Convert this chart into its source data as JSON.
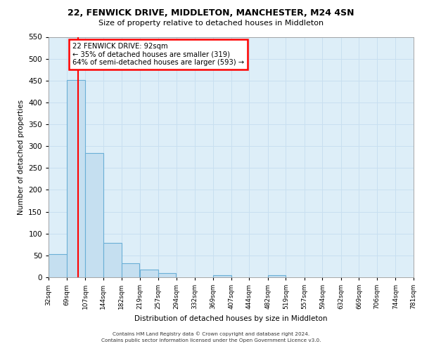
{
  "title_line1": "22, FENWICK DRIVE, MIDDLETON, MANCHESTER, M24 4SN",
  "title_line2": "Size of property relative to detached houses in Middleton",
  "xlabel": "Distribution of detached houses by size in Middleton",
  "ylabel": "Number of detached properties",
  "bar_left_edges": [
    32,
    69,
    107,
    144,
    182,
    219,
    257,
    294,
    332,
    369,
    407,
    444,
    482,
    519,
    557,
    594,
    632,
    669,
    706,
    744
  ],
  "bar_widths": [
    37,
    38,
    37,
    38,
    37,
    38,
    37,
    38,
    37,
    38,
    37,
    38,
    37,
    38,
    37,
    38,
    37,
    38,
    37,
    37
  ],
  "bar_heights": [
    53,
    452,
    284,
    79,
    32,
    17,
    9,
    0,
    0,
    5,
    0,
    0,
    5,
    0,
    0,
    0,
    0,
    0,
    0,
    0
  ],
  "bar_color": "#c5dff0",
  "bar_edge_color": "#6aafd6",
  "property_line_x": 92,
  "property_line_color": "red",
  "annotation_title": "22 FENWICK DRIVE: 92sqm",
  "annotation_line1": "← 35% of detached houses are smaller (319)",
  "annotation_line2": "64% of semi-detached houses are larger (593) →",
  "annotation_box_color": "white",
  "annotation_box_edge_color": "red",
  "xlim": [
    32,
    781
  ],
  "ylim": [
    0,
    550
  ],
  "yticks": [
    0,
    50,
    100,
    150,
    200,
    250,
    300,
    350,
    400,
    450,
    500,
    550
  ],
  "xtick_labels": [
    "32sqm",
    "69sqm",
    "107sqm",
    "144sqm",
    "182sqm",
    "219sqm",
    "257sqm",
    "294sqm",
    "332sqm",
    "369sqm",
    "407sqm",
    "444sqm",
    "482sqm",
    "519sqm",
    "557sqm",
    "594sqm",
    "632sqm",
    "669sqm",
    "706sqm",
    "744sqm",
    "781sqm"
  ],
  "xtick_positions": [
    32,
    69,
    107,
    144,
    182,
    219,
    257,
    294,
    332,
    369,
    407,
    444,
    482,
    519,
    557,
    594,
    632,
    669,
    706,
    744,
    781
  ],
  "grid_color": "#c8dff0",
  "background_color": "#ddeef8",
  "footer_line1": "Contains HM Land Registry data © Crown copyright and database right 2024.",
  "footer_line2": "Contains public sector information licensed under the Open Government Licence v3.0."
}
